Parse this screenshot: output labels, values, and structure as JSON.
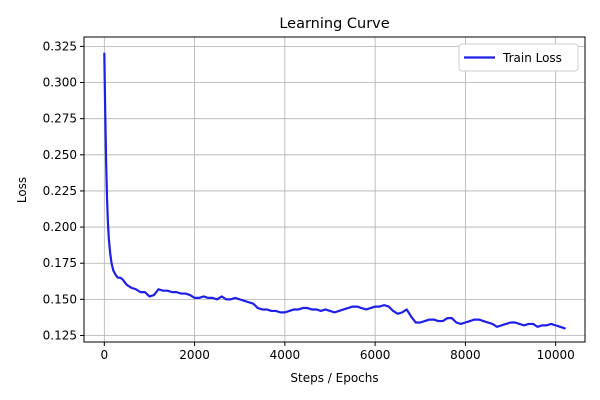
{
  "chart_data": {
    "type": "line",
    "title": "Learning Curve",
    "xlabel": "Steps / Epochs",
    "ylabel": "Loss",
    "xlim": [
      -450,
      10650
    ],
    "ylim": [
      0.1205,
      0.3315
    ],
    "grid": true,
    "legend_position": "top-right",
    "x_ticks": [
      0,
      2000,
      4000,
      6000,
      8000,
      10000
    ],
    "y_ticks": [
      0.125,
      0.15,
      0.175,
      0.2,
      0.225,
      0.25,
      0.275,
      0.3,
      0.325
    ],
    "x_tick_labels": [
      "0",
      "2000",
      "4000",
      "6000",
      "8000",
      "10000"
    ],
    "y_tick_labels": [
      "0.125",
      "0.150",
      "0.175",
      "0.200",
      "0.225",
      "0.250",
      "0.275",
      "0.300",
      "0.325"
    ],
    "series": [
      {
        "name": "Train Loss",
        "color": "#1f1fe6",
        "x": [
          0,
          20,
          40,
          60,
          80,
          100,
          130,
          160,
          200,
          250,
          300,
          350,
          400,
          450,
          500,
          600,
          700,
          800,
          900,
          1000,
          1100,
          1200,
          1300,
          1400,
          1500,
          1600,
          1700,
          1800,
          1900,
          2000,
          2100,
          2200,
          2300,
          2400,
          2500,
          2600,
          2700,
          2800,
          2900,
          3000,
          3100,
          3200,
          3300,
          3400,
          3500,
          3600,
          3700,
          3800,
          3900,
          4000,
          4100,
          4200,
          4300,
          4400,
          4500,
          4600,
          4700,
          4800,
          4900,
          5000,
          5100,
          5200,
          5300,
          5400,
          5500,
          5600,
          5700,
          5800,
          5900,
          6000,
          6100,
          6200,
          6300,
          6400,
          6500,
          6600,
          6700,
          6800,
          6900,
          7000,
          7100,
          7200,
          7300,
          7400,
          7500,
          7600,
          7700,
          7800,
          7900,
          8000,
          8100,
          8200,
          8300,
          8400,
          8500,
          8600,
          8700,
          8800,
          8900,
          9000,
          9100,
          9200,
          9300,
          9400,
          9500,
          9600,
          9700,
          9800,
          9900,
          10000,
          10100,
          10200
        ],
        "values": [
          0.32,
          0.28,
          0.245,
          0.22,
          0.203,
          0.192,
          0.182,
          0.175,
          0.17,
          0.167,
          0.165,
          0.165,
          0.164,
          0.162,
          0.16,
          0.158,
          0.157,
          0.155,
          0.155,
          0.152,
          0.153,
          0.157,
          0.156,
          0.156,
          0.155,
          0.155,
          0.154,
          0.154,
          0.153,
          0.151,
          0.151,
          0.152,
          0.151,
          0.151,
          0.15,
          0.152,
          0.15,
          0.15,
          0.151,
          0.15,
          0.149,
          0.148,
          0.147,
          0.144,
          0.143,
          0.143,
          0.142,
          0.142,
          0.141,
          0.141,
          0.142,
          0.143,
          0.143,
          0.144,
          0.144,
          0.143,
          0.143,
          0.142,
          0.143,
          0.142,
          0.141,
          0.142,
          0.143,
          0.144,
          0.145,
          0.145,
          0.144,
          0.143,
          0.144,
          0.145,
          0.145,
          0.146,
          0.145,
          0.142,
          0.14,
          0.141,
          0.143,
          0.138,
          0.134,
          0.134,
          0.135,
          0.136,
          0.136,
          0.135,
          0.135,
          0.137,
          0.137,
          0.134,
          0.133,
          0.134,
          0.135,
          0.136,
          0.136,
          0.135,
          0.134,
          0.133,
          0.131,
          0.132,
          0.133,
          0.134,
          0.134,
          0.133,
          0.132,
          0.133,
          0.133,
          0.131,
          0.132,
          0.132,
          0.133,
          0.132,
          0.131,
          0.13
        ]
      }
    ]
  }
}
